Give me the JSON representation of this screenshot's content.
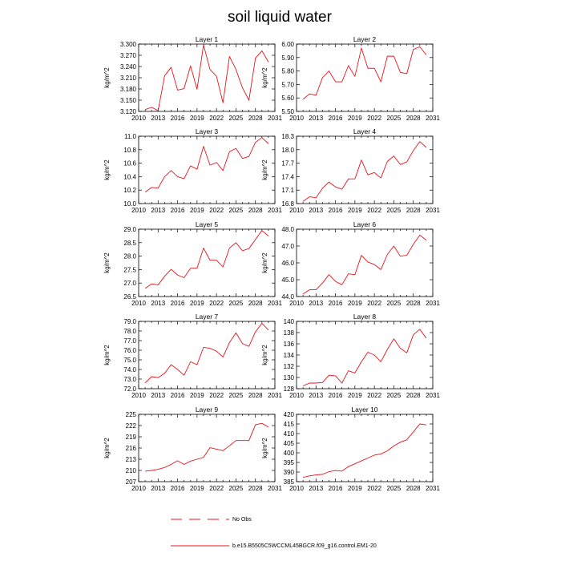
{
  "chart_data": {
    "type": "line",
    "title": "soil liquid water",
    "ylabel": "kg/m^2",
    "xlim": [
      2010,
      2031
    ],
    "xticks": [
      "2010",
      "2013",
      "2016",
      "2019",
      "2022",
      "2025",
      "2028",
      "2031"
    ],
    "x": [
      2011,
      2012,
      2013,
      2014,
      2015,
      2016,
      2017,
      2018,
      2019,
      2020,
      2021,
      2022,
      2023,
      2024,
      2025,
      2026,
      2027,
      2028,
      2029,
      2030
    ],
    "color": "#e8141c",
    "panels": [
      {
        "title": "Layer 1",
        "ylim": [
          3.12,
          3.3
        ],
        "yticks": [
          "3.120",
          "3.150",
          "3.180",
          "3.210",
          "3.240",
          "3.270",
          "3.300"
        ],
        "values": [
          3.125,
          3.131,
          3.122,
          3.215,
          3.238,
          3.177,
          3.181,
          3.242,
          3.179,
          3.298,
          3.232,
          3.214,
          3.143,
          3.267,
          3.232,
          3.183,
          3.15,
          3.262,
          3.282,
          3.252
        ]
      },
      {
        "title": "Layer 2",
        "ylim": [
          5.5,
          6.0
        ],
        "yticks": [
          "5.50",
          "5.60",
          "5.70",
          "5.80",
          "5.90",
          "6.00"
        ],
        "values": [
          5.59,
          5.63,
          5.62,
          5.75,
          5.8,
          5.72,
          5.72,
          5.84,
          5.76,
          5.97,
          5.82,
          5.82,
          5.72,
          5.91,
          5.91,
          5.79,
          5.78,
          5.96,
          5.98,
          5.92
        ]
      },
      {
        "title": "Layer 3",
        "ylim": [
          10.0,
          11.0
        ],
        "yticks": [
          "10.0",
          "10.2",
          "10.4",
          "10.6",
          "10.8",
          "11.0"
        ],
        "values": [
          10.17,
          10.24,
          10.23,
          10.4,
          10.49,
          10.4,
          10.37,
          10.56,
          10.51,
          10.85,
          10.57,
          10.61,
          10.49,
          10.77,
          10.82,
          10.67,
          10.7,
          10.91,
          10.98,
          10.89
        ]
      },
      {
        "title": "Layer 4",
        "ylim": [
          16.8,
          18.3
        ],
        "yticks": [
          "16.8",
          "17.1",
          "17.4",
          "17.7",
          "18.0",
          "18.3"
        ],
        "values": [
          16.85,
          16.95,
          16.93,
          17.14,
          17.28,
          17.17,
          17.12,
          17.35,
          17.35,
          17.77,
          17.44,
          17.49,
          17.37,
          17.74,
          17.86,
          17.67,
          17.73,
          17.98,
          18.18,
          18.05
        ]
      },
      {
        "title": "Layer 5",
        "ylim": [
          26.5,
          29.0
        ],
        "yticks": [
          "26.5",
          "27.0",
          "27.5",
          "28.0",
          "28.5",
          "29.0"
        ],
        "values": [
          26.8,
          26.97,
          26.93,
          27.25,
          27.51,
          27.3,
          27.2,
          27.55,
          27.55,
          28.3,
          27.85,
          27.85,
          27.6,
          28.3,
          28.5,
          28.2,
          28.28,
          28.62,
          28.95,
          28.75
        ]
      },
      {
        "title": "Layer 6",
        "ylim": [
          44.0,
          48.0
        ],
        "yticks": [
          "44.0",
          "45.0",
          "46.0",
          "47.0",
          "48.0"
        ],
        "values": [
          44.15,
          44.4,
          44.4,
          44.8,
          45.3,
          44.9,
          44.7,
          45.35,
          45.3,
          46.45,
          46.05,
          45.9,
          45.6,
          46.5,
          47.0,
          46.4,
          46.45,
          47.1,
          47.65,
          47.35
        ]
      },
      {
        "title": "Layer 7",
        "ylim": [
          72.0,
          79.0
        ],
        "yticks": [
          "72.0",
          "73.0",
          "74.0",
          "75.0",
          "76.0",
          "77.0",
          "78.0",
          "79.0"
        ],
        "values": [
          72.6,
          73.25,
          73.15,
          73.6,
          74.5,
          74.0,
          73.4,
          74.8,
          74.5,
          76.3,
          76.2,
          75.9,
          75.3,
          76.8,
          77.8,
          76.7,
          76.4,
          77.9,
          78.8,
          78.1
        ]
      },
      {
        "title": "Layer 8",
        "ylim": [
          128,
          140
        ],
        "yticks": [
          "128",
          "130",
          "132",
          "134",
          "136",
          "138",
          "140"
        ],
        "values": [
          128.5,
          129.0,
          129.0,
          129.1,
          130.4,
          130.3,
          129.0,
          131.2,
          130.8,
          132.8,
          134.5,
          134.0,
          132.8,
          135.0,
          136.9,
          135.2,
          134.4,
          137.6,
          138.6,
          137.0
        ]
      },
      {
        "title": "Layer 9",
        "ylim": [
          207,
          225
        ],
        "yticks": [
          "207",
          "210",
          "213",
          "216",
          "219",
          "222",
          "225"
        ],
        "values": [
          209.8,
          210.0,
          210.3,
          210.8,
          211.6,
          212.6,
          211.6,
          212.5,
          213.0,
          213.5,
          216.1,
          215.7,
          215.3,
          216.6,
          218.0,
          218.0,
          218.0,
          222.2,
          222.6,
          221.6
        ]
      },
      {
        "title": "Layer 10",
        "ylim": [
          385,
          420
        ],
        "yticks": [
          "385",
          "390",
          "395",
          "400",
          "405",
          "410",
          "415",
          "420"
        ],
        "values": [
          387.2,
          388.0,
          388.5,
          388.8,
          390.2,
          390.8,
          390.5,
          392.8,
          394.3,
          395.8,
          397.3,
          398.8,
          399.4,
          401.0,
          403.6,
          405.5,
          406.8,
          410.8,
          415.0,
          414.5
        ]
      }
    ],
    "legend": [
      {
        "label": "No Obs",
        "style": "dashed"
      },
      {
        "label": "b.e15.B5505C5WCCML45BGCR.f09_g16.control.EM1-20",
        "style": "solid"
      }
    ]
  }
}
